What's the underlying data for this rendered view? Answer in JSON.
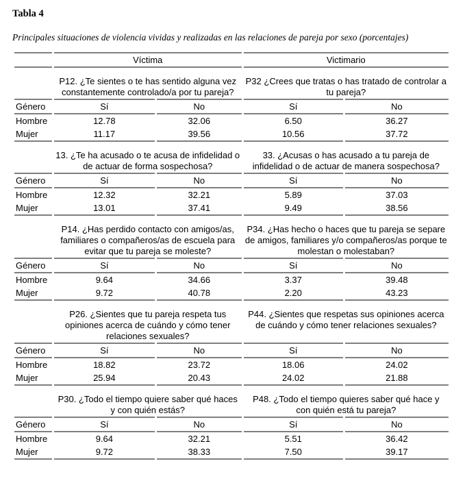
{
  "page": {
    "title": "Tabla 4",
    "subtitle": "Principales situaciones de violencia vividas y realizadas en las relaciones de pareja por sexo (porcentajes)"
  },
  "table": {
    "column_groups": {
      "victima": "Víctima",
      "victimario": "Victimario"
    },
    "row_header_label": "Género",
    "answer_labels": {
      "yes": "Sí",
      "no": "No"
    },
    "blocks": [
      {
        "victima_question": "P12. ¿Te sientes o te has sentido alguna vez constantemente controlado/a por tu pareja?",
        "victimario_question": "P32 ¿Crees que tratas o has tratado de controlar a tu pareja?",
        "rows": [
          {
            "label": "Hombre",
            "values": [
              "12.78",
              "32.06",
              "6.50",
              "36.27"
            ]
          },
          {
            "label": "Mujer",
            "values": [
              "11.17",
              "39.56",
              "10.56",
              "37.72"
            ]
          }
        ]
      },
      {
        "victima_question": "13. ¿Te ha acusado o te acusa de infidelidad o de actuar de forma sospechosa?",
        "victimario_question": "33. ¿Acusas o has acusado a tu pareja de infidelidad o de actuar de manera sospechosa?",
        "rows": [
          {
            "label": "Hombre",
            "values": [
              "12.32",
              "32.21",
              "5.89",
              "37.03"
            ]
          },
          {
            "label": "Mujer",
            "values": [
              "13.01",
              "37.41",
              "9.49",
              "38.56"
            ]
          }
        ]
      },
      {
        "victima_question": "P14. ¿Has perdido contacto con amigos/as, familiares o compañeros/as de escuela para evitar que tu pareja se moleste?",
        "victimario_question": "P34. ¿Has hecho o haces que tu pareja se separe de amigos, familiares y/o compañeros/as porque te molestan o molestaban?",
        "rows": [
          {
            "label": "Hombre",
            "values": [
              "9.64",
              "34.66",
              "3.37",
              "39.48"
            ]
          },
          {
            "label": "Mujer",
            "values": [
              "9.72",
              "40.78",
              "2.20",
              "43.23"
            ]
          }
        ]
      },
      {
        "victima_question": "P26. ¿Sientes que tu pareja respeta tus opiniones acerca de cuándo y cómo tener relaciones sexuales?",
        "victimario_question": "P44. ¿Sientes que respetas sus opiniones acerca de cuándo y cómo tener relaciones sexuales?",
        "rows": [
          {
            "label": "Hombre",
            "values": [
              "18.82",
              "23.72",
              "18.06",
              "24.02"
            ]
          },
          {
            "label": "Mujer",
            "values": [
              "25.94",
              "20.43",
              "24.02",
              "21.88"
            ]
          }
        ]
      },
      {
        "victima_question": "P30. ¿Todo el tiempo quiere saber qué haces y con quién estás?",
        "victimario_question": "P48. ¿Todo el tiempo quieres saber qué hace y con quién está tu pareja?",
        "rows": [
          {
            "label": "Hombre",
            "values": [
              "9.64",
              "32.21",
              "5.51",
              "36.42"
            ]
          },
          {
            "label": "Mujer",
            "values": [
              "9.72",
              "38.33",
              "7.50",
              "39.17"
            ]
          }
        ]
      }
    ]
  }
}
